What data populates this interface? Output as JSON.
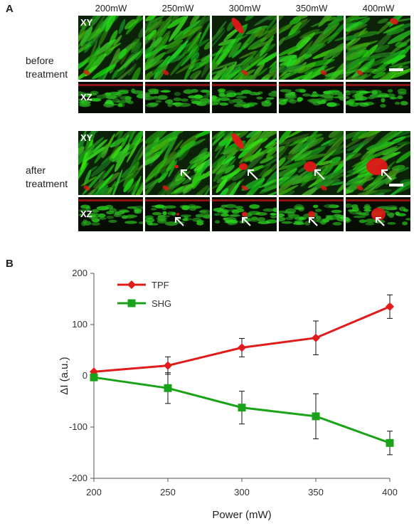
{
  "panel_a": {
    "letter": "A",
    "powers": [
      "200mW",
      "250mW",
      "300mW",
      "350mW",
      "400mW"
    ],
    "rows": [
      {
        "label_line1": "before",
        "label_line2": "treatment",
        "xy_tag": "XY",
        "xz_tag": "XZ",
        "arrows": [
          false,
          false,
          false,
          false,
          false
        ]
      },
      {
        "label_line1": "after",
        "label_line2": "treatment",
        "xy_tag": "XY",
        "xz_tag": "XZ",
        "arrows": [
          false,
          true,
          true,
          true,
          true
        ]
      }
    ]
  },
  "panel_b": {
    "letter": "B"
  },
  "chart_data": {
    "type": "line",
    "xlabel": "Power (mW)",
    "ylabel": "ΔI (a.u.)",
    "x": [
      200,
      250,
      300,
      350,
      400
    ],
    "xticks": [
      "200",
      "250",
      "300",
      "350",
      "400"
    ],
    "yticks": [
      "200",
      "100",
      "0",
      "-100",
      "-200"
    ],
    "xlim": [
      200,
      400
    ],
    "ylim": [
      -200,
      200
    ],
    "grid": false,
    "legend_position": "top-left",
    "series": [
      {
        "name": "TPF",
        "color": "#e01b1b",
        "marker": "diamond",
        "values": [
          8,
          20,
          55,
          74,
          135
        ],
        "errors": [
          0,
          17,
          18,
          33,
          23
        ]
      },
      {
        "name": "SHG",
        "color": "#1aa319",
        "marker": "square",
        "values": [
          -3,
          -24,
          -62,
          -79,
          -131
        ],
        "errors": [
          0,
          30,
          32,
          44,
          23
        ]
      }
    ]
  }
}
